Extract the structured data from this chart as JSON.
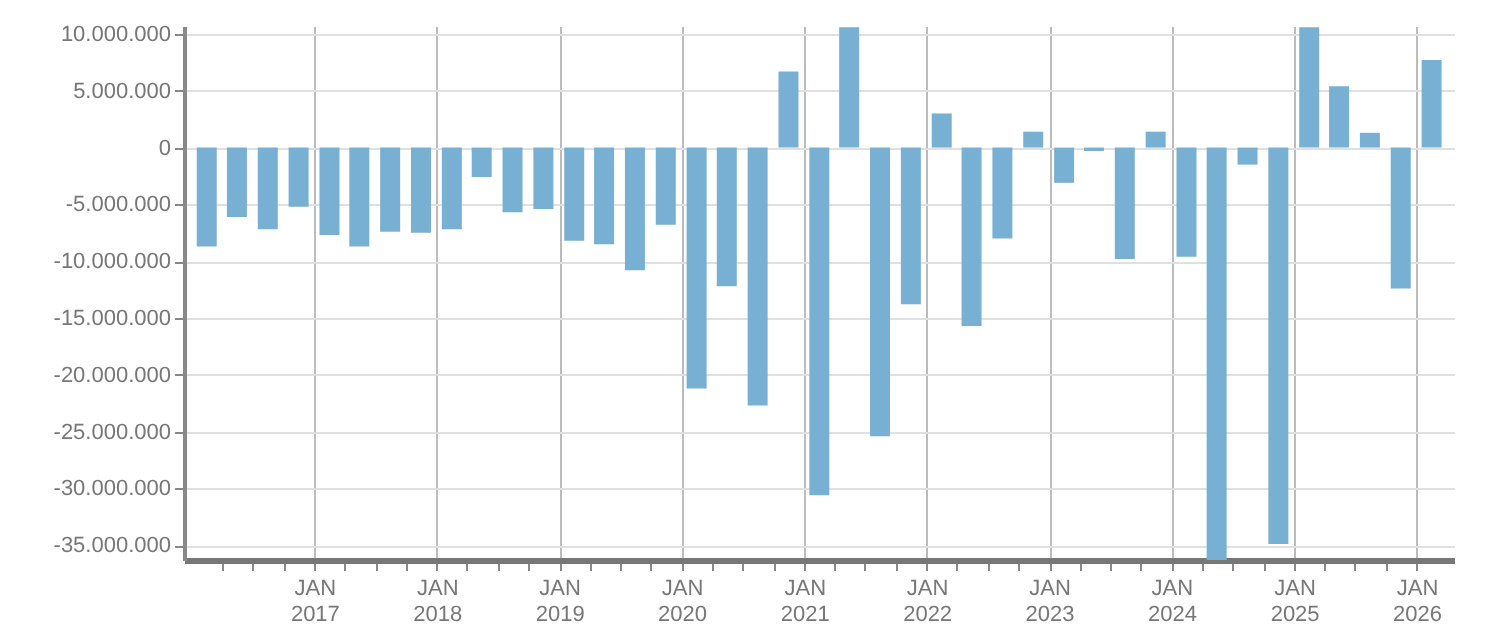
{
  "chart_data": {
    "type": "bar",
    "x": [
      "2016-02-15",
      "2016-05-15",
      "2016-08-15",
      "2016-11-15",
      "2017-02-15",
      "2017-05-15",
      "2017-08-15",
      "2017-11-15",
      "2018-02-15",
      "2018-05-15",
      "2018-08-15",
      "2018-11-15",
      "2019-02-15",
      "2019-05-15",
      "2019-08-15",
      "2019-11-15",
      "2020-02-15",
      "2020-05-15",
      "2020-08-15",
      "2020-11-15",
      "2021-02-15",
      "2021-05-15",
      "2021-08-15",
      "2021-11-15",
      "2022-02-15",
      "2022-05-15",
      "2022-08-15",
      "2022-11-15",
      "2023-02-15",
      "2023-05-15",
      "2023-08-15",
      "2023-11-15",
      "2024-02-15",
      "2024-05-15",
      "2024-08-15",
      "2024-11-15",
      "2025-02-15",
      "2025-05-15",
      "2025-08-15",
      "2025-11-15",
      "2026-02-15"
    ],
    "values": [
      -8700000,
      -6100000,
      -7200000,
      -5200000,
      -7700000,
      -8700000,
      -7400000,
      -7500000,
      -7200000,
      -2600000,
      -5700000,
      -5400000,
      -8200000,
      -8500000,
      -10800000,
      -6800000,
      -21200000,
      -12200000,
      -22700000,
      6700000,
      -30600000,
      10600000,
      -25400000,
      -13800000,
      3000000,
      -15700000,
      -8000000,
      1400000,
      -3100000,
      -300000,
      -9800000,
      1400000,
      -9600000,
      -36300000,
      -1500000,
      -34900000,
      10600000,
      5400000,
      1300000,
      -12400000,
      7700000
    ],
    "color": "#78b0d3",
    "xlim": [
      "2016-01-08",
      "2026-03-24"
    ],
    "xticks": [
      {
        "value": "2016-04-01",
        "label": null
      },
      {
        "value": "2016-07-01",
        "label": null
      },
      {
        "value": "2016-10-01",
        "label": null
      },
      {
        "value": "2017-01-01",
        "label": "JAN 2017"
      },
      {
        "value": "2017-04-01",
        "label": null
      },
      {
        "value": "2017-07-01",
        "label": null
      },
      {
        "value": "2017-10-01",
        "label": null
      },
      {
        "value": "2018-01-01",
        "label": "JAN 2018"
      },
      {
        "value": "2018-04-01",
        "label": null
      },
      {
        "value": "2018-07-01",
        "label": null
      },
      {
        "value": "2018-10-01",
        "label": null
      },
      {
        "value": "2019-01-01",
        "label": "JAN 2019"
      },
      {
        "value": "2019-04-01",
        "label": null
      },
      {
        "value": "2019-07-01",
        "label": null
      },
      {
        "value": "2019-10-01",
        "label": null
      },
      {
        "value": "2020-01-01",
        "label": "JAN 2020"
      },
      {
        "value": "2020-04-01",
        "label": null
      },
      {
        "value": "2020-07-01",
        "label": null
      },
      {
        "value": "2020-10-01",
        "label": null
      },
      {
        "value": "2021-01-01",
        "label": "JAN 2021"
      },
      {
        "value": "2021-04-01",
        "label": null
      },
      {
        "value": "2021-07-01",
        "label": null
      },
      {
        "value": "2021-10-01",
        "label": null
      },
      {
        "value": "2022-01-01",
        "label": "JAN 2022"
      },
      {
        "value": "2022-04-01",
        "label": null
      },
      {
        "value": "2022-07-01",
        "label": null
      },
      {
        "value": "2022-10-01",
        "label": null
      },
      {
        "value": "2023-01-01",
        "label": "JAN 2023"
      },
      {
        "value": "2023-04-01",
        "label": null
      },
      {
        "value": "2023-07-01",
        "label": null
      },
      {
        "value": "2023-10-01",
        "label": null
      },
      {
        "value": "2024-01-01",
        "label": "JAN 2024"
      },
      {
        "value": "2024-04-01",
        "label": null
      },
      {
        "value": "2024-07-01",
        "label": null
      },
      {
        "value": "2024-10-01",
        "label": null
      },
      {
        "value": "2025-01-01",
        "label": "JAN 2025"
      },
      {
        "value": "2025-04-01",
        "label": null
      },
      {
        "value": "2025-07-01",
        "label": null
      },
      {
        "value": "2025-10-01",
        "label": null
      },
      {
        "value": "2026-01-01",
        "label": "JAN 2026"
      }
    ],
    "ylim": [
      -36300000,
      10700000
    ],
    "yticks": [
      {
        "value": -35000000,
        "label": "-35.000.000"
      },
      {
        "value": -30000000,
        "label": "-30.000.000"
      },
      {
        "value": -25000000,
        "label": "-25.000.000"
      },
      {
        "value": -20000000,
        "label": "-20.000.000"
      },
      {
        "value": -15000000,
        "label": "-15.000.000"
      },
      {
        "value": -10000000,
        "label": "-10.000.000"
      },
      {
        "value": -5000000,
        "label": "-5.000.000"
      },
      {
        "value": 0,
        "label": "0"
      },
      {
        "value": 5000000,
        "label": "5.000.000"
      },
      {
        "value": 10000000,
        "label": "10.000.000"
      }
    ],
    "grid": true
  }
}
